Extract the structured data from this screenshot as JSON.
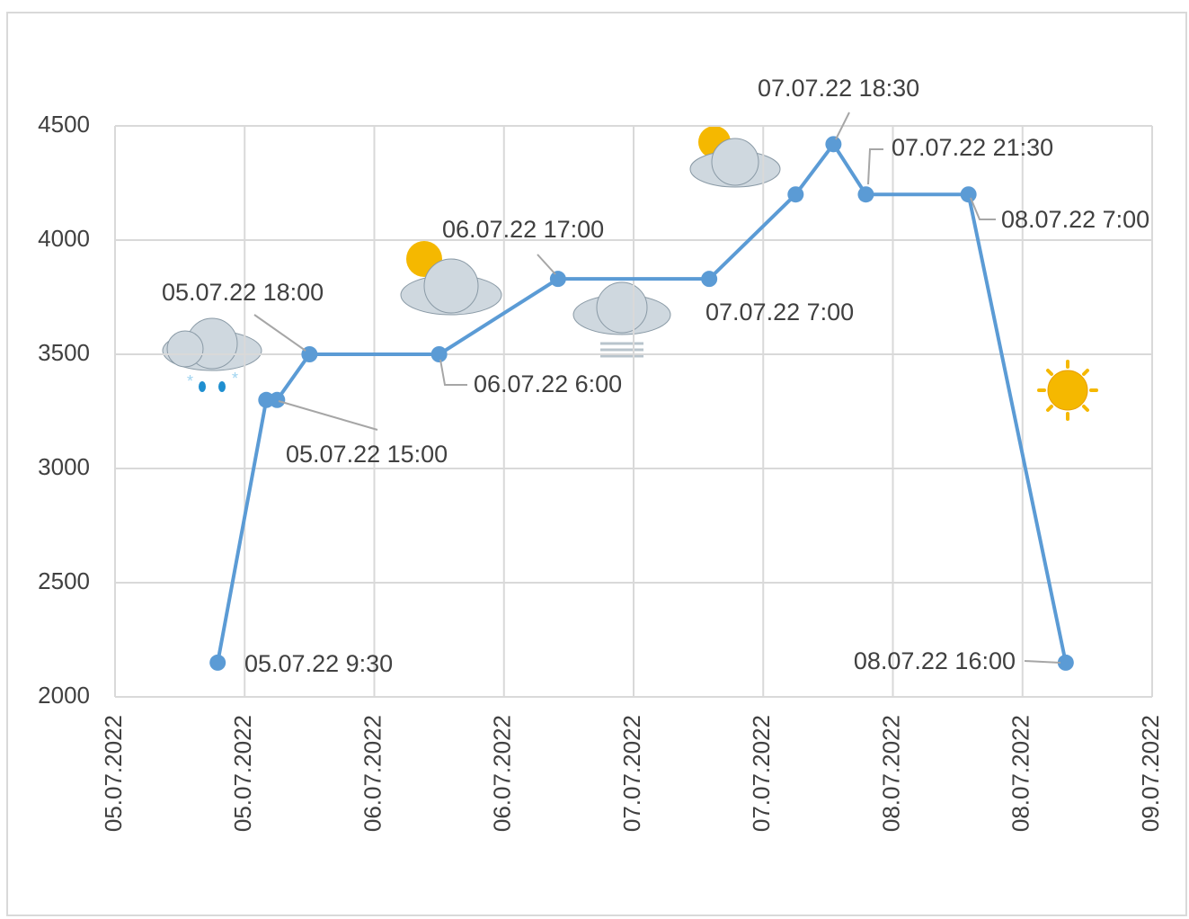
{
  "chart_data": {
    "type": "line",
    "x": [
      "2022-07-05T09:30",
      "2022-07-05T14:00",
      "2022-07-05T15:00",
      "2022-07-05T18:00",
      "2022-07-06T06:00",
      "2022-07-06T17:00",
      "2022-07-07T07:00",
      "2022-07-07T15:00",
      "2022-07-07T18:30",
      "2022-07-07T21:30",
      "2022-07-08T07:00",
      "2022-07-08T16:00"
    ],
    "series": [
      {
        "color": "#5b9bd5",
        "values": [
          2150,
          3300,
          3300,
          3500,
          3500,
          3830,
          3830,
          4200,
          4420,
          4200,
          4200,
          2150
        ]
      }
    ],
    "point_labels": [
      "05.07.22 9:30",
      null,
      "05.07.22 15:00",
      "05.07.22 18:00",
      "06.07.22 6:00",
      "06.07.22 17:00",
      "07.07.22 7:00",
      null,
      "07.07.22 18:30",
      "07.07.22 21:30",
      "08.07.22 7:00",
      "08.07.22 16:00"
    ],
    "xlim": [
      "2022-07-05T00:00",
      "2022-07-09T00:00"
    ],
    "xticks": [
      {
        "value": "2022-07-05T00:00",
        "label": "05.07.2022"
      },
      {
        "value": "2022-07-05T12:00",
        "label": "05.07.2022"
      },
      {
        "value": "2022-07-06T00:00",
        "label": "06.07.2022"
      },
      {
        "value": "2022-07-06T12:00",
        "label": "06.07.2022"
      },
      {
        "value": "2022-07-07T00:00",
        "label": "07.07.2022"
      },
      {
        "value": "2022-07-07T12:00",
        "label": "07.07.2022"
      },
      {
        "value": "2022-07-08T00:00",
        "label": "08.07.2022"
      },
      {
        "value": "2022-07-08T12:00",
        "label": "08.07.2022"
      },
      {
        "value": "2022-07-09T00:00",
        "label": "09.07.2022"
      }
    ],
    "ylim": [
      2000,
      4500
    ],
    "yticks": [
      2000,
      2500,
      3000,
      3500,
      4000,
      4500
    ],
    "grid": true
  }
}
